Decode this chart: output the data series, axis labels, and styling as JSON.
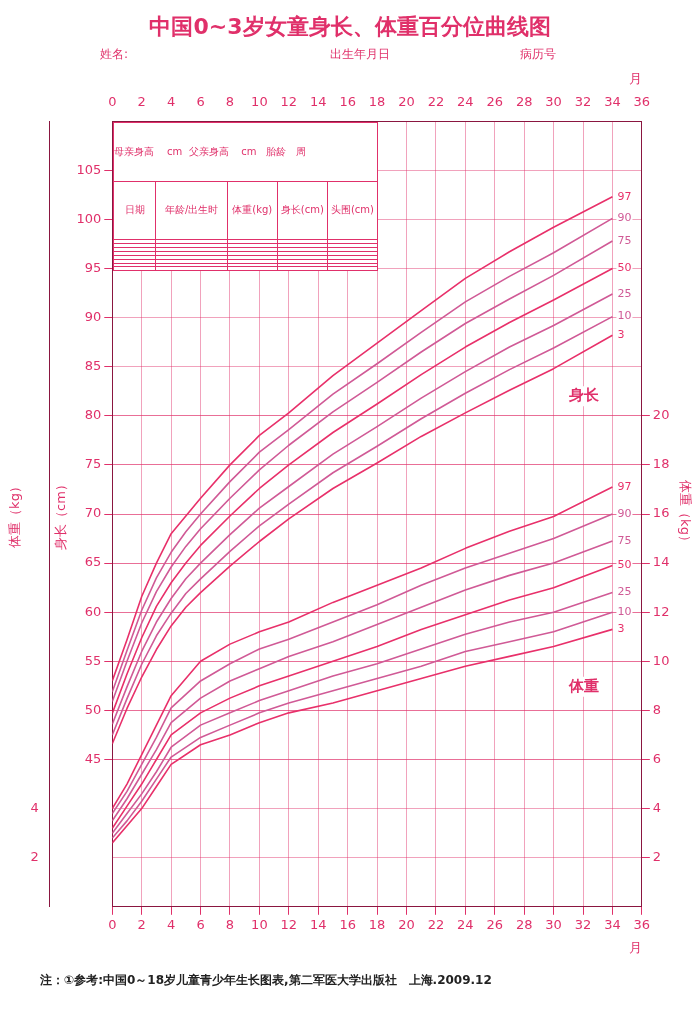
{
  "chart_data": {
    "type": "line",
    "title": "中国0~3岁女童身长、体重百分位曲线图",
    "xlabel": "月",
    "x2label": "月",
    "ylabel": "身长（cm）",
    "y2label": "体重（kg）",
    "y3label": "体重（kg）",
    "xlim": [
      0,
      36
    ],
    "xticks": [
      0,
      2,
      4,
      6,
      8,
      10,
      12,
      14,
      16,
      18,
      20,
      22,
      24,
      26,
      28,
      30,
      32,
      34,
      36
    ],
    "x2lim": [
      0,
      36
    ],
    "x2ticks": [
      0,
      2,
      4,
      6,
      8,
      10,
      12,
      14,
      16,
      18,
      20,
      22,
      24,
      26,
      28,
      30,
      32,
      34,
      36
    ],
    "ylim": [
      30,
      110
    ],
    "yticks": [
      45,
      50,
      55,
      60,
      65,
      70,
      75,
      80,
      85,
      90,
      95,
      100,
      105
    ],
    "y2lim": [
      0,
      32
    ],
    "y2ticks": [
      2,
      4,
      6,
      8,
      10,
      12,
      14,
      16,
      18,
      20
    ],
    "y3lim": [
      0,
      32
    ],
    "y3ticks": [
      2,
      4
    ],
    "grid": true,
    "x": [
      0,
      1,
      2,
      3,
      4,
      5,
      6,
      8,
      10,
      12,
      15,
      18,
      21,
      24,
      27,
      30,
      34
    ],
    "series": [
      {
        "name": "3",
        "color": "#e8306a",
        "values": [
          46.6,
          50.2,
          53.4,
          56.2,
          58.6,
          60.5,
          62.0,
          64.7,
          67.2,
          69.5,
          72.6,
          75.2,
          77.9,
          80.3,
          82.6,
          84.8,
          88.2
        ]
      },
      {
        "name": "10",
        "color": "#d05a96",
        "values": [
          47.5,
          51.2,
          54.7,
          57.6,
          59.9,
          61.9,
          63.4,
          66.2,
          68.8,
          71.0,
          74.2,
          76.9,
          79.7,
          82.3,
          84.7,
          86.9,
          90.1
        ]
      },
      {
        "name": "25",
        "color": "#d05a96",
        "values": [
          48.6,
          52.4,
          56.0,
          59.0,
          61.4,
          63.4,
          65.0,
          67.9,
          70.6,
          72.8,
          76.1,
          78.9,
          81.8,
          84.5,
          87.0,
          89.2,
          92.4
        ]
      },
      {
        "name": "50",
        "color": "#e8306a",
        "values": [
          49.7,
          53.7,
          57.4,
          60.6,
          63.0,
          65.0,
          66.8,
          69.8,
          72.6,
          75.0,
          78.3,
          81.2,
          84.2,
          87.0,
          89.5,
          91.8,
          95.0
        ]
      },
      {
        "name": "75",
        "color": "#d05a96",
        "values": [
          50.9,
          55.0,
          58.9,
          62.1,
          64.6,
          66.7,
          68.5,
          71.6,
          74.5,
          77.0,
          80.4,
          83.4,
          86.5,
          89.4,
          91.9,
          94.3,
          97.8
        ]
      },
      {
        "name": "90",
        "color": "#d05a96",
        "values": [
          51.9,
          56.1,
          60.2,
          63.5,
          66.1,
          68.2,
          70.0,
          73.3,
          76.3,
          78.6,
          82.2,
          85.3,
          88.5,
          91.6,
          94.2,
          96.6,
          100.1
        ]
      },
      {
        "name": "97",
        "color": "#e8306a",
        "values": [
          53.0,
          57.2,
          61.6,
          65.0,
          68.0,
          69.8,
          71.6,
          75.0,
          78.0,
          80.3,
          84.1,
          87.4,
          90.7,
          94.0,
          96.7,
          99.2,
          102.3
        ]
      },
      {
        "name": "3",
        "color": "#e8306a",
        "axis": "y2",
        "x": [
          0,
          1,
          2,
          3,
          4,
          6,
          8,
          10,
          12,
          15,
          18,
          21,
          24,
          27,
          30,
          34
        ],
        "values": [
          2.6,
          3.3,
          4.0,
          4.9,
          5.8,
          6.6,
          7.0,
          7.5,
          7.9,
          8.3,
          8.8,
          9.3,
          9.8,
          10.2,
          10.6,
          11.3
        ]
      },
      {
        "name": "10",
        "color": "#d05a96",
        "axis": "y2",
        "x": [
          0,
          1,
          2,
          3,
          4,
          6,
          8,
          10,
          12,
          15,
          18,
          21,
          24,
          27,
          30,
          34
        ],
        "values": [
          2.8,
          3.5,
          4.3,
          5.2,
          6.1,
          6.9,
          7.4,
          7.9,
          8.3,
          8.8,
          9.3,
          9.8,
          10.4,
          10.8,
          11.2,
          12.0
        ]
      },
      {
        "name": "25",
        "color": "#d05a96",
        "axis": "y2",
        "x": [
          0,
          1,
          2,
          3,
          4,
          6,
          8,
          10,
          12,
          15,
          18,
          21,
          24,
          27,
          30,
          34
        ],
        "values": [
          3.0,
          3.8,
          4.6,
          5.5,
          6.5,
          7.4,
          7.9,
          8.4,
          8.8,
          9.4,
          9.9,
          10.5,
          11.1,
          11.6,
          12.0,
          12.8
        ]
      },
      {
        "name": "50",
        "color": "#e8306a",
        "axis": "y2",
        "x": [
          0,
          1,
          2,
          3,
          4,
          6,
          8,
          10,
          12,
          15,
          18,
          21,
          24,
          27,
          30,
          34
        ],
        "values": [
          3.2,
          4.1,
          5.0,
          6.0,
          7.0,
          7.9,
          8.5,
          9.0,
          9.4,
          10.0,
          10.6,
          11.3,
          11.9,
          12.5,
          13.0,
          13.9
        ]
      },
      {
        "name": "75",
        "color": "#d05a96",
        "axis": "y2",
        "x": [
          0,
          1,
          2,
          3,
          4,
          6,
          8,
          10,
          12,
          15,
          18,
          21,
          24,
          27,
          30,
          34
        ],
        "values": [
          3.5,
          4.4,
          5.4,
          6.4,
          7.5,
          8.5,
          9.2,
          9.7,
          10.2,
          10.8,
          11.5,
          12.2,
          12.9,
          13.5,
          14.0,
          14.9
        ]
      },
      {
        "name": "90",
        "color": "#d05a96",
        "axis": "y2",
        "x": [
          0,
          1,
          2,
          3,
          4,
          6,
          8,
          10,
          12,
          15,
          18,
          21,
          24,
          27,
          30,
          34
        ],
        "values": [
          3.8,
          4.7,
          5.8,
          6.9,
          8.1,
          9.2,
          9.9,
          10.5,
          10.9,
          11.6,
          12.3,
          13.1,
          13.8,
          14.4,
          15.0,
          16.0
        ]
      },
      {
        "name": "97",
        "color": "#e8306a",
        "axis": "y2",
        "x": [
          0,
          1,
          2,
          3,
          4,
          6,
          8,
          10,
          12,
          15,
          18,
          21,
          24,
          27,
          30,
          34
        ],
        "values": [
          4.0,
          5.0,
          6.2,
          7.4,
          8.6,
          10.0,
          10.7,
          11.2,
          11.6,
          12.4,
          13.1,
          13.8,
          14.6,
          15.3,
          15.9,
          17.1
        ]
      }
    ],
    "annotations": [
      "姓名:",
      "出生年月日",
      "病历号",
      "身长",
      "体重",
      "注：①参考:中国0～18岁儿童青少年生长图表,第二军医大学出版社　上海.2009.12",
      "母亲身高",
      "cm",
      "父亲身高",
      "cm",
      "胎龄",
      "周",
      "日期",
      "年龄/出生时",
      "体重(kg)",
      "身长(cm)",
      "头围(cm)"
    ]
  }
}
